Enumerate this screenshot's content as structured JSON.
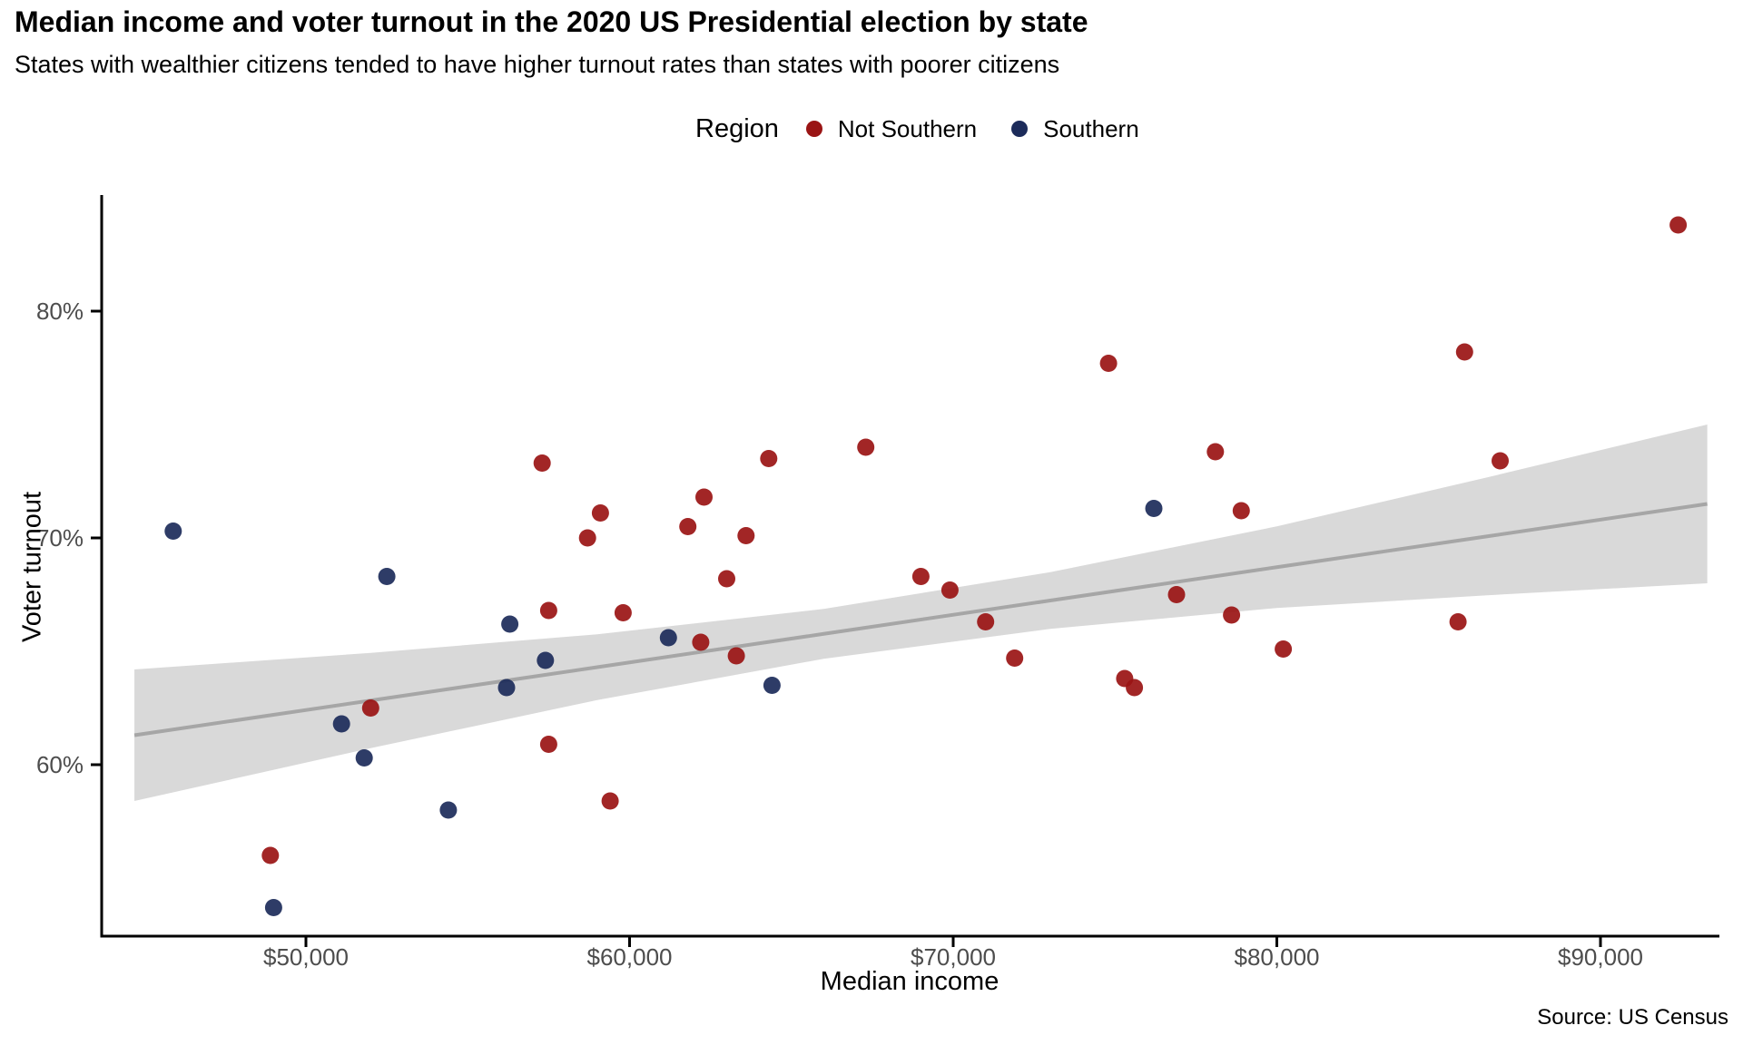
{
  "title": "Median income and voter turnout in the 2020 US Presidential election by state",
  "subtitle": "States with wealthier citizens tended to have higher turnout rates than states with poorer citizens",
  "source": "Source: US Census",
  "legend": {
    "title": "Region",
    "items": [
      {
        "label": "Not Southern",
        "color": "#9A1414"
      },
      {
        "label": "Southern",
        "color": "#1C2B5A"
      }
    ]
  },
  "colors": {
    "not_southern": "#9A1414",
    "southern": "#1C2B5A",
    "band": "#D9D9D9",
    "trend": "#A6A6A6",
    "axis": "#000000",
    "tick_label": "#4D4D4D"
  },
  "chart_data": {
    "type": "scatter",
    "title": "Median income and voter turnout in the 2020 US Presidential election by state",
    "xlabel": "Median income",
    "ylabel": "Voter turnout",
    "legend_title": "Region",
    "legend_position": "top",
    "grid": false,
    "xlim": [
      43700,
      94000
    ],
    "ylim": [
      52,
      85.5
    ],
    "x_ticks": [
      {
        "value": 50000,
        "label": "$50,000"
      },
      {
        "value": 60000,
        "label": "$60,000"
      },
      {
        "value": 70000,
        "label": "$70,000"
      },
      {
        "value": 80000,
        "label": "$80,000"
      },
      {
        "value": 90000,
        "label": "$90,000"
      }
    ],
    "y_ticks": [
      {
        "value": 60,
        "label": "60%"
      },
      {
        "value": 70,
        "label": "70%"
      },
      {
        "value": 80,
        "label": "80%"
      }
    ],
    "series": [
      {
        "name": "Not Southern",
        "color": "#9A1414",
        "points": [
          [
            92400,
            83.8
          ],
          [
            85800,
            78.2
          ],
          [
            74800,
            77.7
          ],
          [
            78100,
            73.8
          ],
          [
            86900,
            73.4
          ],
          [
            67300,
            74.0
          ],
          [
            64300,
            73.5
          ],
          [
            57300,
            73.3
          ],
          [
            62300,
            71.8
          ],
          [
            59100,
            71.1
          ],
          [
            61800,
            70.5
          ],
          [
            58700,
            70.0
          ],
          [
            63600,
            70.1
          ],
          [
            78900,
            71.2
          ],
          [
            63000,
            68.2
          ],
          [
            69000,
            68.3
          ],
          [
            69900,
            67.7
          ],
          [
            57500,
            66.8
          ],
          [
            59800,
            66.7
          ],
          [
            62200,
            65.4
          ],
          [
            63300,
            64.8
          ],
          [
            71000,
            66.3
          ],
          [
            71900,
            64.7
          ],
          [
            75300,
            63.8
          ],
          [
            75600,
            63.4
          ],
          [
            76900,
            67.5
          ],
          [
            78600,
            66.6
          ],
          [
            80200,
            65.1
          ],
          [
            85600,
            66.3
          ],
          [
            52000,
            62.5
          ],
          [
            57500,
            60.9
          ],
          [
            59400,
            58.4
          ],
          [
            48900,
            56.0
          ]
        ]
      },
      {
        "name": "Southern",
        "color": "#1C2B5A",
        "points": [
          [
            45900,
            70.3
          ],
          [
            52500,
            68.3
          ],
          [
            56300,
            66.2
          ],
          [
            56200,
            63.4
          ],
          [
            57400,
            64.6
          ],
          [
            51100,
            61.8
          ],
          [
            51800,
            60.3
          ],
          [
            49000,
            53.7
          ],
          [
            54400,
            58.0
          ],
          [
            61200,
            65.6
          ],
          [
            64400,
            63.5
          ],
          [
            76200,
            71.3
          ]
        ]
      }
    ],
    "trend": {
      "type": "linear-fit-with-confidence-band",
      "x": [
        44700,
        52000,
        59000,
        66000,
        73000,
        80000,
        86500,
        93300
      ],
      "line": [
        61.3,
        62.83,
        64.3,
        65.77,
        67.24,
        68.71,
        70.07,
        71.5
      ],
      "upper": [
        64.2,
        64.93,
        65.75,
        66.87,
        68.49,
        70.51,
        72.67,
        75.0
      ],
      "lower": [
        58.4,
        60.73,
        62.85,
        64.67,
        65.99,
        66.91,
        67.47,
        68.0
      ]
    }
  }
}
